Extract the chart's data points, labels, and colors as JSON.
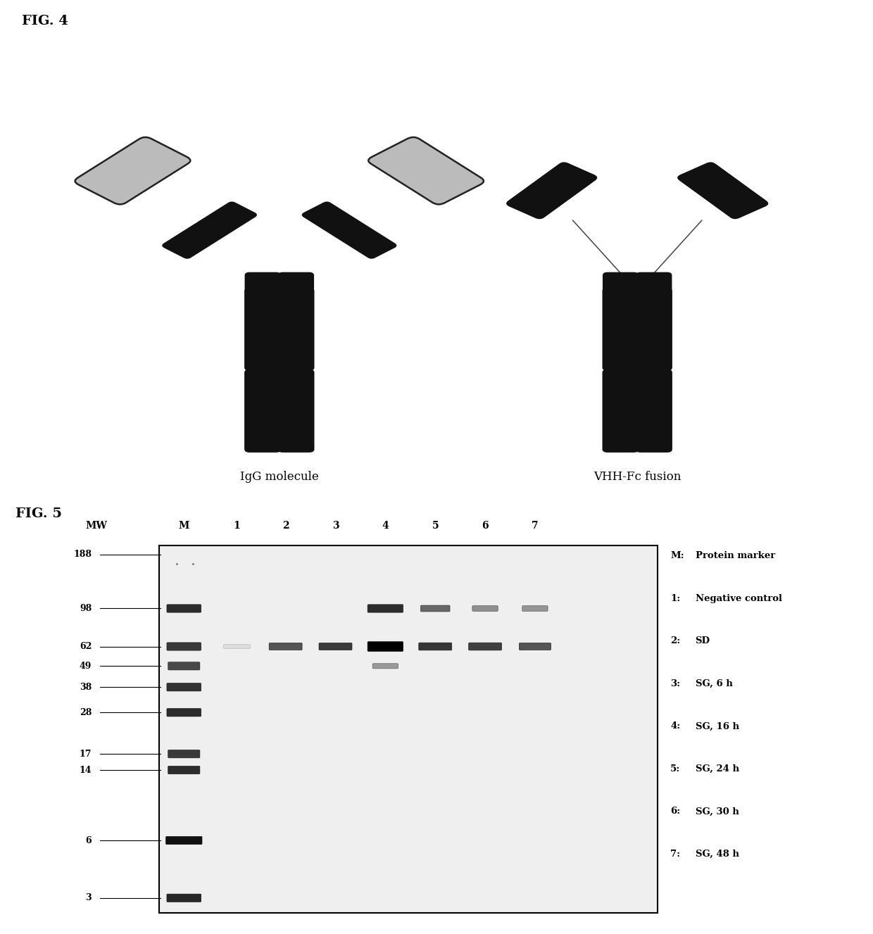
{
  "fig4_label": "FIG. 4",
  "fig5_label": "FIG. 5",
  "igg_label": "IgG molecule",
  "vhh_label": "VHH-Fc fusion",
  "mw_values": [
    188,
    98,
    62,
    49,
    38,
    28,
    17,
    14,
    6,
    3
  ],
  "lane_headers": [
    "MW",
    "M",
    "1",
    "2",
    "3",
    "4",
    "5",
    "6",
    "7"
  ],
  "legend_items": [
    [
      "M:",
      "Protein marker"
    ],
    [
      "1:",
      "Negative control"
    ],
    [
      "2:",
      "SD"
    ],
    [
      "3:",
      "SG, 6 h"
    ],
    [
      "4:",
      "SG, 16 h"
    ],
    [
      "5:",
      "SG, 24 h"
    ],
    [
      "6:",
      "SG, 30 h"
    ],
    [
      "7:",
      "SG, 48 h"
    ]
  ],
  "bg_color": "#ffffff",
  "text_color": "#000000"
}
